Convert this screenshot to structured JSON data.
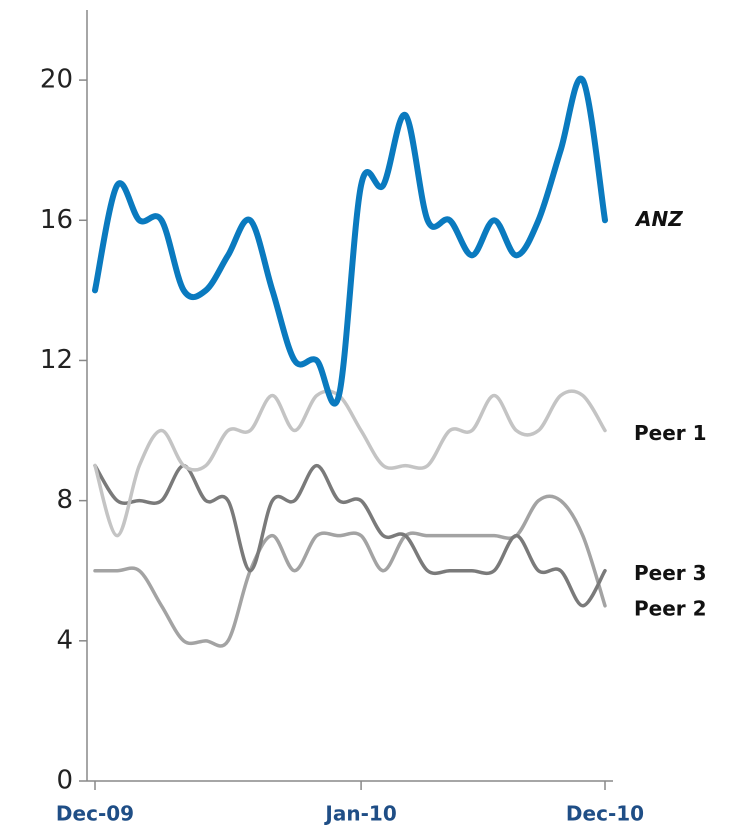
{
  "chart_data": {
    "type": "line",
    "categories": [
      "Dec-09",
      null,
      null,
      null,
      null,
      null,
      null,
      null,
      null,
      null,
      null,
      null,
      "Jan-10",
      null,
      null,
      null,
      null,
      null,
      null,
      null,
      null,
      null,
      null,
      "Dec-10"
    ],
    "ylim": [
      0,
      22
    ],
    "yticks": [
      0,
      4,
      8,
      12,
      16,
      20
    ],
    "series": [
      {
        "name": "ANZ",
        "color": "#0a7abf",
        "values": [
          14,
          17,
          16,
          16,
          14,
          14,
          15,
          16,
          14,
          12,
          12,
          11,
          17,
          17,
          19,
          16,
          16,
          15,
          16,
          15,
          16,
          18,
          20,
          16
        ]
      },
      {
        "name": "Peer 1",
        "color": "#c4c4c4",
        "values": [
          9,
          7,
          9,
          10,
          9,
          9,
          10,
          10,
          11,
          10,
          11,
          11,
          10,
          9,
          9,
          9,
          10,
          10,
          11,
          10,
          10,
          11,
          11,
          10
        ]
      },
      {
        "name": "Peer 3",
        "color": "#7a7a7a",
        "values": [
          9,
          8,
          8,
          8,
          9,
          8,
          8,
          6,
          8,
          8,
          9,
          8,
          8,
          7,
          7,
          6,
          6,
          6,
          6,
          7,
          6,
          6,
          5,
          6
        ]
      },
      {
        "name": "Peer 2",
        "color": "#a3a3a3",
        "values": [
          6,
          6,
          6,
          5,
          4,
          4,
          4,
          6,
          7,
          6,
          7,
          7,
          7,
          6,
          7,
          7,
          7,
          7,
          7,
          7,
          8,
          8,
          7,
          5
        ]
      }
    ]
  }
}
